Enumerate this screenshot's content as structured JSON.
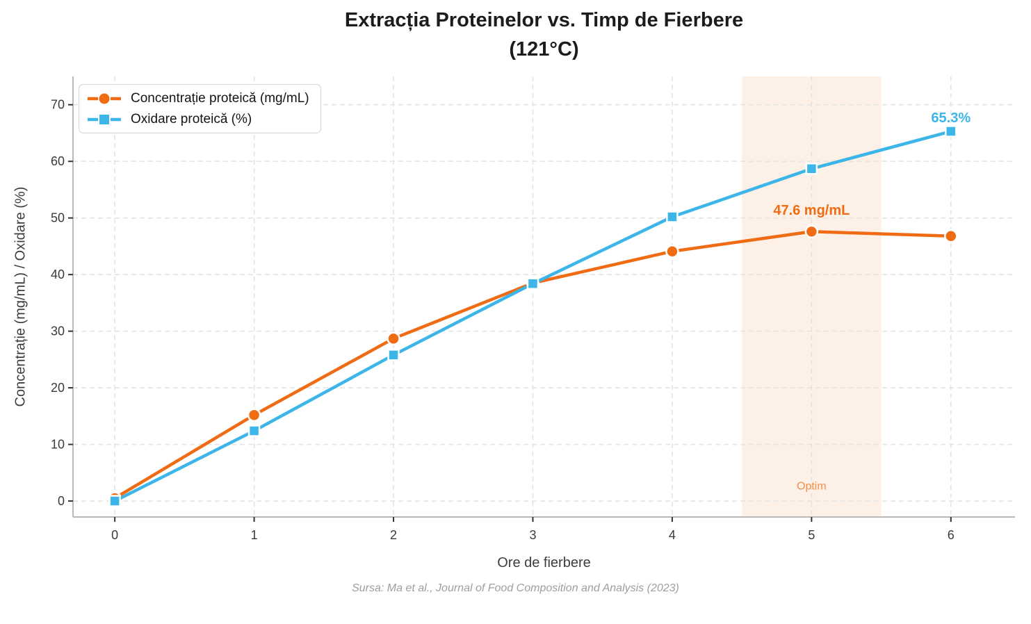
{
  "title": {
    "line1": "Extracția Proteinelor vs. Timp de Fierbere",
    "line2": "(121°C)"
  },
  "source_caption": "Sursa: Ma et al., Journal of Food Composition and Analysis (2023)",
  "palette": {
    "grid": "#e4e4e4",
    "spine": "#b9b9b9",
    "tick": "#3a3a3a",
    "band_fill": "#fdf0e6",
    "title_text": "#1c1c1c",
    "axis_label_text": "#3d3d3d",
    "source_text": "#9e9e9e"
  },
  "chart_data": {
    "type": "line",
    "title": "Extracția Proteinelor vs. Timp de Fierbere (121°C)",
    "xlabel": "Ore de fierbere",
    "ylabel": "Concentrație (mg/mL) / Oxidare (%)",
    "x": [
      0,
      1,
      2,
      3,
      4,
      5,
      6
    ],
    "series": [
      {
        "name": "Concentrație proteică (mg/mL)",
        "color": "#f06c14",
        "marker": "circle",
        "values": [
          0.5,
          15.2,
          28.7,
          38.5,
          44.1,
          47.6,
          46.8
        ]
      },
      {
        "name": "Oxidare proteică (%)",
        "color": "#3cb5e9",
        "marker": "square",
        "values": [
          0.0,
          12.4,
          25.8,
          38.4,
          50.2,
          58.7,
          65.3
        ]
      }
    ],
    "xticks": [
      0,
      1,
      2,
      3,
      4,
      5,
      6
    ],
    "yticks": [
      0,
      10,
      20,
      30,
      40,
      50,
      60,
      70
    ],
    "xlim": [
      -0.3,
      6.46
    ],
    "ylim": [
      -2.82,
      75.0
    ],
    "grid": true,
    "legend_position": "upper left",
    "band": {
      "x0": 4.5,
      "x1": 5.5,
      "fill": "#fdf0e6",
      "label": "Optim"
    },
    "annotations": [
      {
        "text": "47.6 mg/mL",
        "x": 5,
        "y": 50.6,
        "color": "#f06c14",
        "kind": "value"
      },
      {
        "text": "65.3%",
        "x": 6,
        "y": 66.9,
        "color": "#3cb5e9",
        "kind": "value"
      },
      {
        "text": "Optim",
        "x": 5,
        "y": 2.0,
        "color": "#f1914a",
        "kind": "band"
      }
    ]
  }
}
